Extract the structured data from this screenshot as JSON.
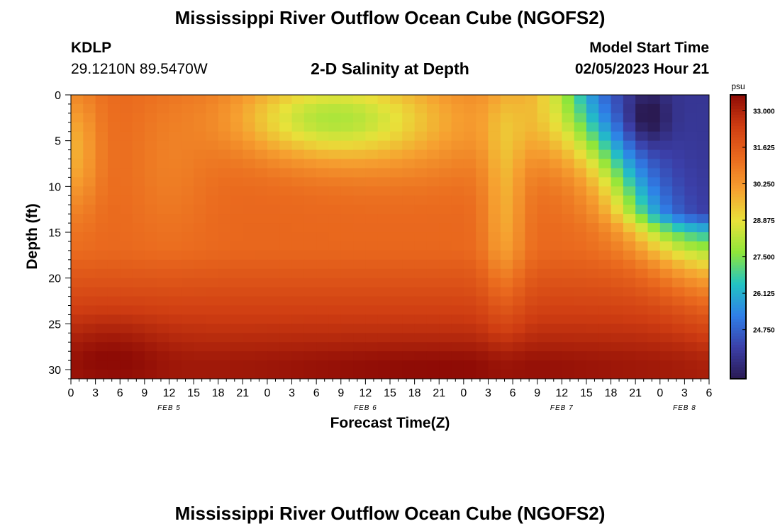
{
  "header": {
    "title": "Mississippi River Outflow Ocean Cube (NGOFS2)",
    "station": "KDLP",
    "coords": "29.1210N  89.5470W",
    "subtitle": "2-D Salinity at Depth",
    "model_label": "Model Start Time",
    "model_time": "02/05/2023 Hour 21"
  },
  "footer": {
    "title": "Mississippi River Outflow Ocean Cube (NGOFS2)"
  },
  "chart_data": {
    "type": "heatmap",
    "title": "2-D Salinity at Depth",
    "xlabel": "Forecast Time(Z)",
    "ylabel": "Depth (ft)",
    "x_range": [
      0,
      78
    ],
    "y_range": [
      0,
      31
    ],
    "y_inverted": true,
    "x_ticks": [
      "0",
      "3",
      "6",
      "9",
      "12",
      "15",
      "18",
      "21",
      "0",
      "3",
      "6",
      "9",
      "12",
      "15",
      "18",
      "21",
      "0",
      "3",
      "6",
      "9",
      "12",
      "15",
      "18",
      "21",
      "0",
      "3",
      "6"
    ],
    "y_ticks": [
      "0",
      "5",
      "10",
      "15",
      "20",
      "25",
      "30"
    ],
    "date_labels": [
      {
        "text": "FEB 5",
        "hour": 12
      },
      {
        "text": "FEB 6",
        "hour": 36
      },
      {
        "text": "FEB 7",
        "hour": 60
      },
      {
        "text": "FEB 8",
        "hour": 75
      }
    ],
    "colorbar": {
      "unit": "psu",
      "min": 22.9,
      "max": 33.6,
      "ticks": [
        "33.000",
        "31.625",
        "30.250",
        "28.875",
        "27.500",
        "26.125",
        "24.750"
      ],
      "colors": [
        "#2a1a52",
        "#3b3fa8",
        "#2f7fe8",
        "#22c3c3",
        "#8fe63a",
        "#e8e23a",
        "#f6a030",
        "#ea6a1e",
        "#cf3d12",
        "#8e0b05"
      ]
    },
    "grid": false,
    "legend": "colorbar-right"
  }
}
